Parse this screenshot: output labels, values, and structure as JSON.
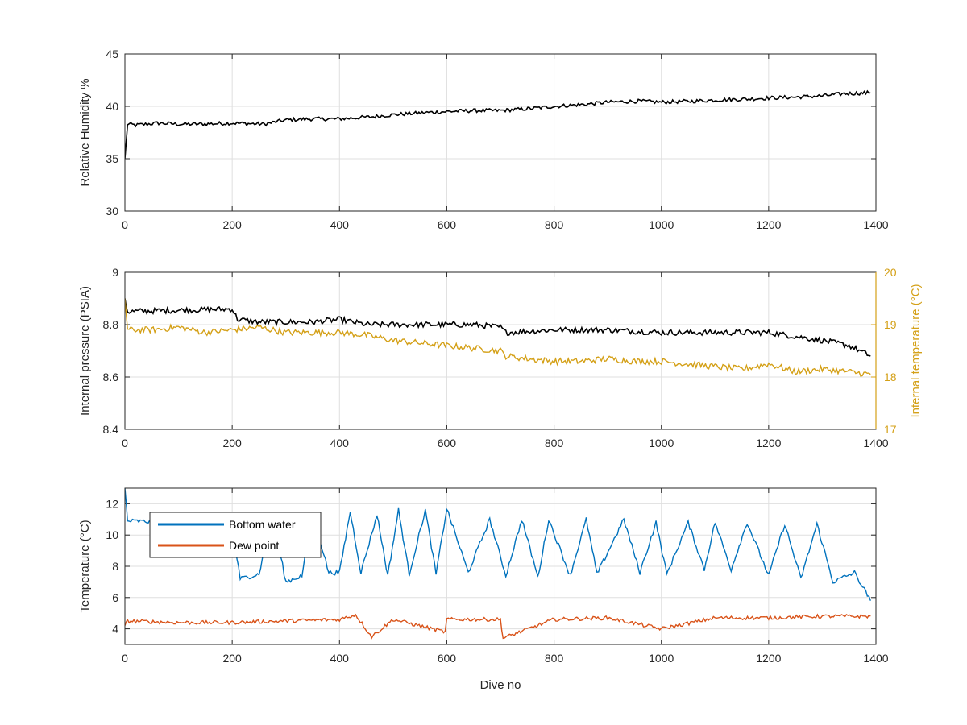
{
  "colors": {
    "black_series": "#000000",
    "internal_temp": "#D4A017",
    "bottom_water": "#0072BD",
    "dew_point": "#D95319",
    "grid": "#DFDFDF",
    "axis": "#262626"
  },
  "chart_data": [
    {
      "type": "line",
      "title": "",
      "xlabel": "",
      "ylabel": "Relative Humidity %",
      "xlim": [
        0,
        1400
      ],
      "ylim": [
        30,
        45
      ],
      "xticks": [
        "0",
        "200",
        "400",
        "600",
        "800",
        "1000",
        "1200",
        "1400"
      ],
      "yticks": [
        "30",
        "35",
        "40",
        "45"
      ],
      "grid": true,
      "series": [
        {
          "name": "",
          "color": "#000000",
          "x": [
            0,
            5,
            20,
            60,
            100,
            140,
            200,
            260,
            300,
            350,
            400,
            460,
            500,
            560,
            600,
            650,
            700,
            760,
            800,
            860,
            900,
            960,
            1000,
            1060,
            1100,
            1160,
            1200,
            1260,
            1300,
            1340,
            1390
          ],
          "y": [
            35,
            38.3,
            38.2,
            38.4,
            38.3,
            38.3,
            38.4,
            38.3,
            38.7,
            38.8,
            38.8,
            39.0,
            39.2,
            39.4,
            39.5,
            39.6,
            39.6,
            39.8,
            40.0,
            40.2,
            40.4,
            40.5,
            40.4,
            40.5,
            40.6,
            40.7,
            40.8,
            40.9,
            41.0,
            41.2,
            41.3
          ]
        }
      ]
    },
    {
      "type": "line",
      "title": "",
      "xlabel": "",
      "ylabel": "Internal pressure (PSIA)",
      "y2label": "Internal temperature (°C)",
      "xlim": [
        0,
        1400
      ],
      "ylim": [
        8.4,
        9.0
      ],
      "y2lim": [
        17,
        20
      ],
      "xticks": [
        "0",
        "200",
        "400",
        "600",
        "800",
        "1000",
        "1200",
        "1400"
      ],
      "yticks": [
        "8.4",
        "8.6",
        "8.8",
        "9"
      ],
      "y2ticks": [
        "17",
        "18",
        "19",
        "20"
      ],
      "grid": true,
      "series": [
        {
          "name": "",
          "axis": "left",
          "color": "#000000",
          "x": [
            0,
            5,
            100,
            200,
            210,
            250,
            300,
            350,
            400,
            450,
            500,
            550,
            600,
            650,
            700,
            710,
            800,
            900,
            1000,
            1100,
            1200,
            1300,
            1350,
            1390
          ],
          "y": [
            8.9,
            8.85,
            8.855,
            8.86,
            8.82,
            8.81,
            8.81,
            8.81,
            8.82,
            8.8,
            8.8,
            8.8,
            8.8,
            8.8,
            8.79,
            8.77,
            8.78,
            8.78,
            8.77,
            8.77,
            8.77,
            8.74,
            8.72,
            8.68
          ]
        },
        {
          "name": "",
          "axis": "right",
          "color": "#D4A017",
          "x": [
            0,
            5,
            50,
            100,
            150,
            200,
            250,
            300,
            350,
            400,
            450,
            500,
            550,
            600,
            650,
            700,
            710,
            750,
            800,
            850,
            900,
            950,
            1000,
            1050,
            1100,
            1150,
            1200,
            1250,
            1300,
            1350,
            1390
          ],
          "y": [
            19.5,
            18.9,
            18.9,
            18.95,
            18.85,
            18.9,
            18.95,
            18.85,
            18.85,
            18.85,
            18.8,
            18.7,
            18.65,
            18.6,
            18.55,
            18.5,
            18.4,
            18.35,
            18.3,
            18.3,
            18.35,
            18.3,
            18.3,
            18.25,
            18.2,
            18.15,
            18.25,
            18.1,
            18.15,
            18.1,
            18.05
          ]
        }
      ]
    },
    {
      "type": "line",
      "title": "",
      "xlabel": "Dive no",
      "ylabel": "Temperature (°C)",
      "xlim": [
        0,
        1400
      ],
      "ylim": [
        3,
        13
      ],
      "xticks": [
        "0",
        "200",
        "400",
        "600",
        "800",
        "1000",
        "1200",
        "1400"
      ],
      "yticks": [
        "4",
        "6",
        "8",
        "10",
        "12"
      ],
      "grid": true,
      "legend": "top-left",
      "series": [
        {
          "name": "Bottom water",
          "color": "#0072BD",
          "x": [
            0,
            5,
            100,
            200,
            215,
            250,
            275,
            300,
            330,
            350,
            380,
            400,
            420,
            440,
            470,
            490,
            510,
            530,
            560,
            580,
            600,
            640,
            680,
            710,
            740,
            770,
            790,
            830,
            860,
            880,
            930,
            960,
            990,
            1010,
            1050,
            1080,
            1100,
            1130,
            1160,
            1200,
            1230,
            1260,
            1290,
            1320,
            1360,
            1390
          ],
          "y": [
            13,
            10.9,
            10.8,
            10.5,
            7.2,
            7.5,
            11.3,
            7.0,
            7.4,
            11.4,
            7.6,
            7.6,
            11.5,
            7.6,
            11.3,
            7.4,
            11.6,
            7.5,
            11.6,
            7.5,
            11.7,
            7.6,
            11.0,
            7.4,
            11.0,
            7.3,
            11.0,
            7.4,
            11.0,
            7.5,
            11.0,
            7.6,
            10.8,
            7.5,
            10.8,
            7.8,
            10.8,
            7.8,
            10.8,
            7.4,
            10.7,
            7.2,
            10.7,
            7.0,
            7.6,
            5.8
          ]
        },
        {
          "name": "Dew point",
          "color": "#D95319",
          "x": [
            0,
            5,
            100,
            200,
            300,
            400,
            430,
            460,
            500,
            597,
            600,
            700,
            705,
            800,
            900,
            1000,
            1100,
            1200,
            1300,
            1390
          ],
          "y": [
            4.2,
            4.5,
            4.4,
            4.4,
            4.5,
            4.6,
            4.9,
            3.5,
            4.6,
            3.8,
            4.6,
            4.6,
            3.4,
            4.6,
            4.7,
            4.0,
            4.7,
            4.7,
            4.8,
            4.8
          ]
        }
      ]
    }
  ]
}
